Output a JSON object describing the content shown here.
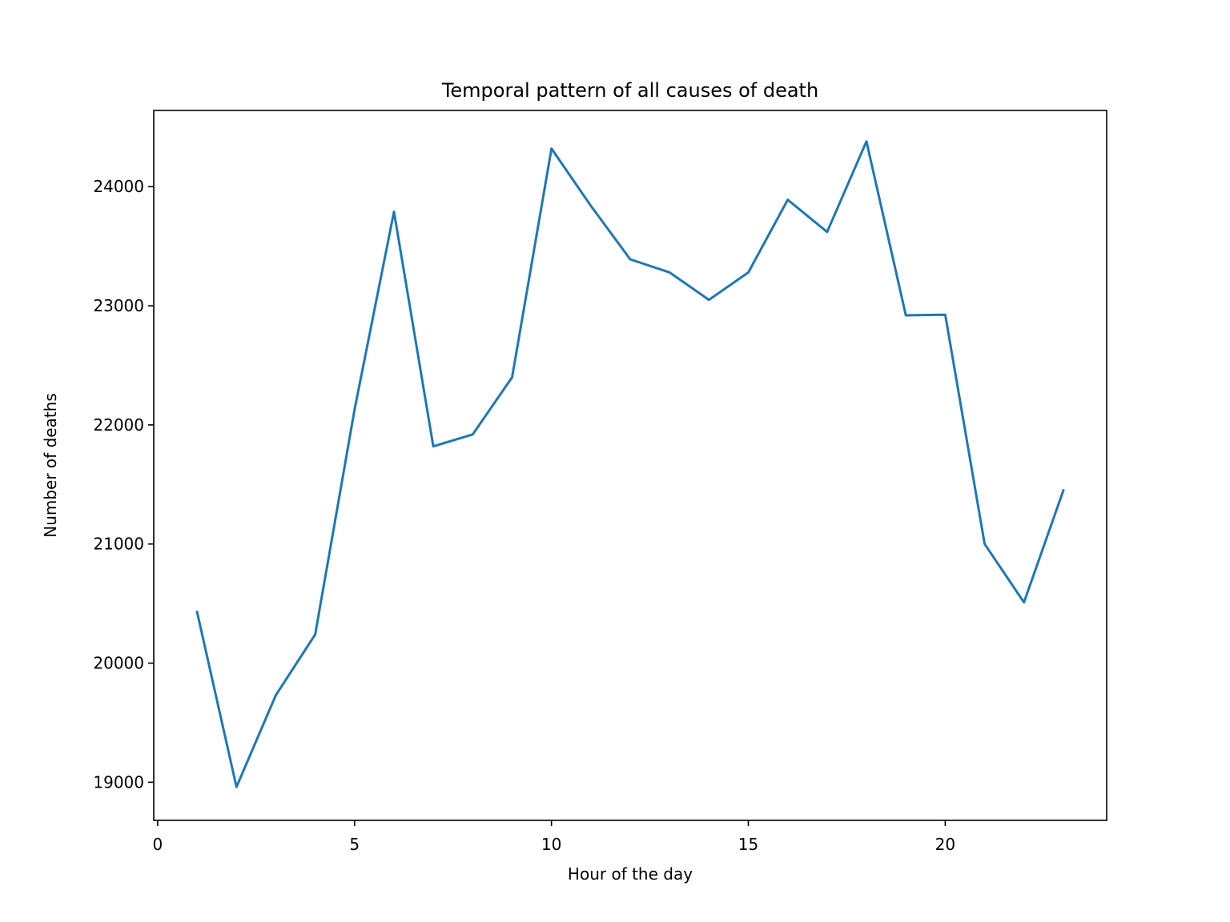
{
  "chart_data": {
    "type": "line",
    "title": "Temporal pattern of all causes of death",
    "xlabel": "Hour of the day",
    "ylabel": "Number of deaths",
    "xlim": [
      -0.1,
      24.1
    ],
    "ylim": [
      18680,
      24640
    ],
    "xticks": [
      0,
      5,
      10,
      15,
      20
    ],
    "yticks": [
      19000,
      20000,
      21000,
      22000,
      23000,
      24000
    ],
    "grid": false,
    "legend": "none",
    "series": [
      {
        "color": "#1f77b4",
        "x": [
          1,
          2,
          3,
          4,
          5,
          6,
          7,
          8,
          9,
          10,
          11,
          12,
          13,
          14,
          15,
          16,
          17,
          18,
          19,
          20,
          21,
          22,
          23
        ],
        "y": [
          20430,
          18960,
          19730,
          20240,
          22130,
          23790,
          21820,
          21920,
          22400,
          24320,
          23840,
          23390,
          23280,
          23050,
          23280,
          23890,
          23620,
          24380,
          22920,
          22925,
          21000,
          20510,
          21450
        ]
      }
    ]
  }
}
